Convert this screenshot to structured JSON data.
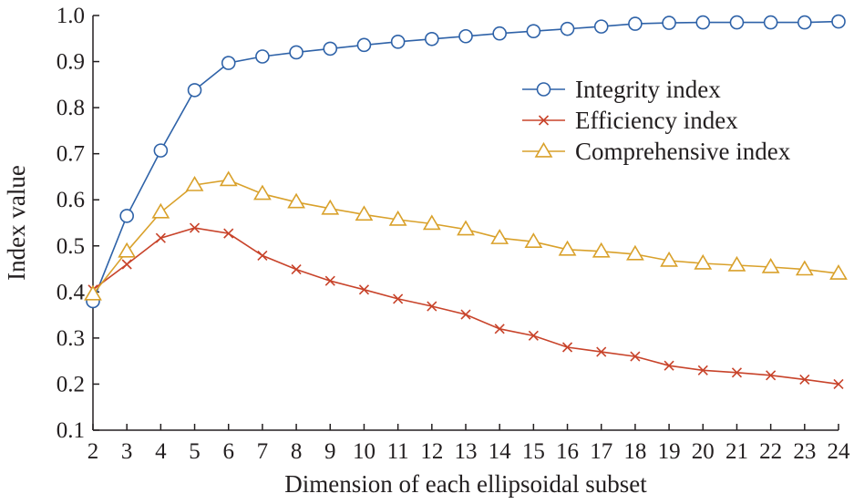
{
  "chart_data": {
    "type": "line",
    "xlabel": "Dimension of each ellipsoidal subset",
    "ylabel": "Index value",
    "x": [
      2,
      3,
      4,
      5,
      6,
      7,
      8,
      9,
      10,
      11,
      12,
      13,
      14,
      15,
      16,
      17,
      18,
      19,
      20,
      21,
      22,
      23,
      24
    ],
    "xlim": [
      2,
      24
    ],
    "ylim": [
      0.1,
      1.0
    ],
    "yticks": [
      "0.1",
      "0.2",
      "0.3",
      "0.4",
      "0.5",
      "0.6",
      "0.7",
      "0.8",
      "0.9",
      "1.0"
    ],
    "grid": false,
    "legend_position": "top-right",
    "series": [
      {
        "name": "Integrity index",
        "marker": "circle",
        "color": "#2e62a8",
        "values": [
          0.38,
          0.565,
          0.707,
          0.838,
          0.897,
          0.911,
          0.92,
          0.928,
          0.936,
          0.943,
          0.949,
          0.955,
          0.961,
          0.966,
          0.971,
          0.976,
          0.982,
          0.984,
          0.985,
          0.985,
          0.985,
          0.985,
          0.987
        ]
      },
      {
        "name": "Efficiency index",
        "marker": "x",
        "color": "#c8432a",
        "values": [
          0.405,
          0.46,
          0.517,
          0.539,
          0.527,
          0.479,
          0.449,
          0.424,
          0.405,
          0.385,
          0.369,
          0.351,
          0.32,
          0.305,
          0.28,
          0.27,
          0.26,
          0.24,
          0.23,
          0.225,
          0.219,
          0.21,
          0.2
        ]
      },
      {
        "name": "Comprehensive index",
        "marker": "triangle",
        "color": "#d9a12b",
        "values": [
          0.395,
          0.488,
          0.573,
          0.632,
          0.643,
          0.613,
          0.595,
          0.581,
          0.568,
          0.557,
          0.548,
          0.536,
          0.517,
          0.509,
          0.492,
          0.488,
          0.482,
          0.468,
          0.462,
          0.458,
          0.454,
          0.449,
          0.44
        ]
      }
    ]
  }
}
